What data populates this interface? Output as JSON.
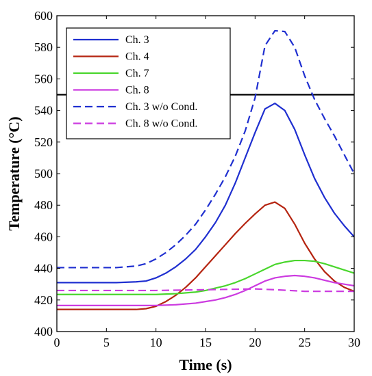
{
  "chart_data": {
    "type": "line",
    "xlabel": "Time (s)",
    "ylabel": "Temperature (°C)",
    "xlim": [
      0,
      30
    ],
    "ylim": [
      400,
      600
    ],
    "xticks": [
      "0",
      "5",
      "10",
      "15",
      "20",
      "25",
      "30"
    ],
    "yticks": [
      "400",
      "420",
      "440",
      "460",
      "480",
      "500",
      "520",
      "540",
      "560",
      "580",
      "600"
    ],
    "grid": false,
    "legend_position": "top-left",
    "reference_line": {
      "y": 550,
      "color": "#000000"
    },
    "series": [
      {
        "name": "Ch. 3",
        "color": "#1f2fd0",
        "style": "solid",
        "x": [
          0,
          6,
          8,
          9,
          10,
          11,
          12,
          13,
          14,
          15,
          16,
          17,
          18,
          19,
          20,
          21,
          22,
          23,
          24,
          25,
          26,
          27,
          28,
          29,
          30
        ],
        "y": [
          431,
          431,
          431.5,
          432,
          434,
          437,
          441,
          446,
          452,
          460,
          469,
          480,
          494,
          510,
          526,
          541,
          544.5,
          540,
          528,
          512,
          497,
          485,
          475,
          467,
          460
        ]
      },
      {
        "name": "Ch. 4",
        "color": "#b52410",
        "style": "solid",
        "x": [
          0,
          7,
          8,
          9,
          10,
          11,
          12,
          13,
          14,
          15,
          16,
          17,
          18,
          19,
          20,
          21,
          22,
          23,
          24,
          25,
          26,
          27,
          28,
          29,
          30
        ],
        "y": [
          414,
          414,
          414,
          414.5,
          416,
          419,
          423,
          428,
          434,
          441,
          448,
          455,
          462,
          468.5,
          474.5,
          480,
          482,
          478,
          468,
          456,
          446,
          438,
          432,
          428,
          425.5
        ]
      },
      {
        "name": "Ch. 7",
        "color": "#49d62c",
        "style": "solid",
        "x": [
          0,
          10,
          12,
          14,
          15,
          16,
          17,
          18,
          19,
          20,
          21,
          22,
          23,
          24,
          25,
          26,
          27,
          28,
          29,
          30
        ],
        "y": [
          423.5,
          423.5,
          424,
          425,
          426,
          427.5,
          429,
          431,
          433.5,
          436.5,
          439.5,
          442.5,
          444,
          445,
          445,
          444.5,
          443,
          441,
          439,
          437
        ]
      },
      {
        "name": "Ch. 8",
        "color": "#cc3be0",
        "style": "solid",
        "x": [
          0,
          10,
          12,
          14,
          15,
          16,
          17,
          18,
          19,
          20,
          21,
          22,
          23,
          24,
          25,
          26,
          27,
          28,
          29,
          30
        ],
        "y": [
          416.5,
          416.5,
          417,
          418,
          419,
          420,
          421.5,
          423.5,
          426,
          429,
          432,
          434,
          435,
          435.5,
          435,
          434,
          432.5,
          431,
          430,
          429
        ]
      },
      {
        "name": "Ch. 3 w/o Cond.",
        "color": "#1f2fd0",
        "style": "dashed",
        "x": [
          0,
          6,
          8,
          9,
          10,
          11,
          12,
          13,
          14,
          15,
          16,
          17,
          18,
          19,
          20,
          21,
          22,
          23,
          24,
          25,
          26,
          27,
          28,
          29,
          30
        ],
        "y": [
          440.5,
          440.5,
          441.5,
          443,
          446,
          450,
          455,
          461,
          468,
          477,
          487,
          498,
          511,
          527,
          548,
          581,
          590.5,
          590,
          580,
          562,
          547,
          535,
          524,
          512,
          500
        ]
      },
      {
        "name": "Ch. 8 w/o Cond.",
        "color": "#cc3be0",
        "style": "dashed",
        "x": [
          0,
          10,
          15,
          20,
          22,
          25,
          30
        ],
        "y": [
          426,
          426,
          426.5,
          427,
          426.5,
          425.5,
          425.5
        ]
      }
    ]
  }
}
